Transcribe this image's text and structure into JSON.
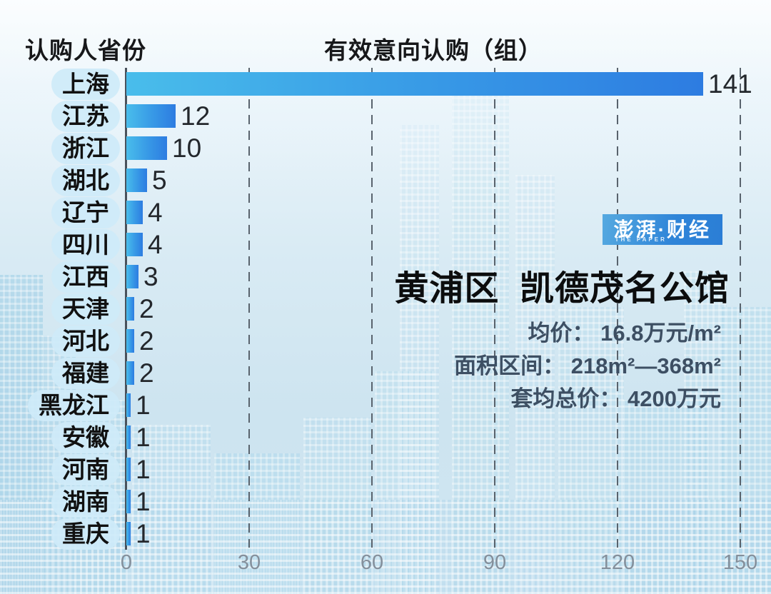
{
  "header": {
    "left_label": "认购人省份",
    "chart_title": "有效意向认购（组）"
  },
  "chart_data": {
    "type": "bar",
    "orientation": "horizontal",
    "categories": [
      "上海",
      "江苏",
      "浙江",
      "湖北",
      "辽宁",
      "四川",
      "江西",
      "天津",
      "河北",
      "福建",
      "黑龙江",
      "安徽",
      "河南",
      "湖南",
      "重庆"
    ],
    "values": [
      141,
      12,
      10,
      5,
      4,
      4,
      3,
      2,
      2,
      2,
      1,
      1,
      1,
      1,
      1
    ],
    "title": "有效意向认购（组）",
    "category_axis_label": "认购人省份",
    "xlim": [
      0,
      150
    ],
    "xticks": [
      0,
      30,
      60,
      90,
      120,
      150
    ],
    "grid": "dashed-vertical",
    "value_labels_shown": true,
    "bar_gradient": [
      "#49bdeb",
      "#2d7ce1"
    ],
    "label_pill_color": "#cee9f9"
  },
  "info_panel": {
    "logo": {
      "text": "澎湃·财经",
      "subtext": "THE PAPER",
      "bg_gradient": [
        "#55a9e0",
        "#2b7ed6"
      ]
    },
    "property_title": "黄浦区  凯德茂名公馆",
    "detail_separator": "：",
    "details": [
      {
        "label": "均价",
        "value": "16.8万元/m²"
      },
      {
        "label": "面积区间",
        "value": "218m²—368m²"
      },
      {
        "label": "套均总价",
        "value": "4200万元"
      }
    ]
  }
}
